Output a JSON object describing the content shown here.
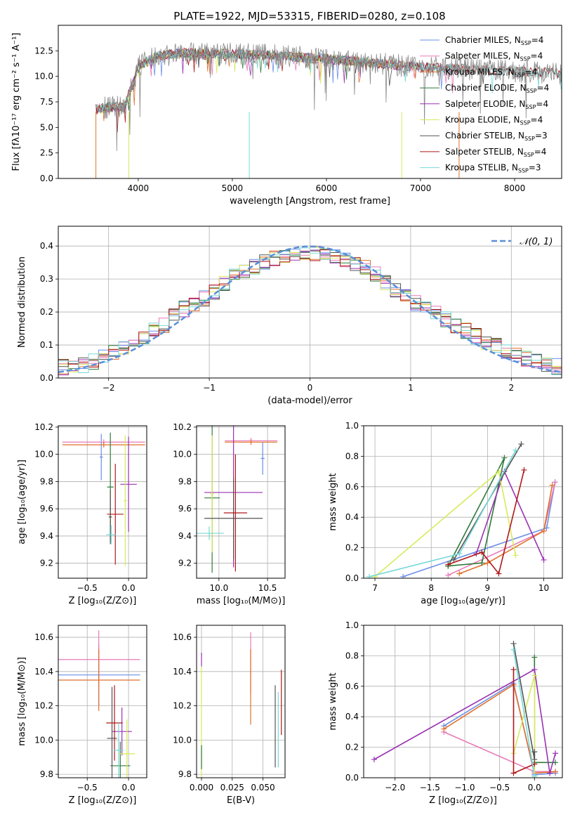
{
  "figure_title": "PLATE=1922, MJD=53315, FIBERID=0280, z=0.108",
  "colors": {
    "Chabrier MILES": "#6a8ee8",
    "Salpeter MILES": "#e87ab8",
    "Kroupa MILES": "#e0702a",
    "Chabrier ELODIE": "#2f7a3a",
    "Salpeter ELODIE": "#9a32b4",
    "Kroupa ELODIE": "#d8ea5a",
    "Chabrier STELIB": "#555555",
    "Salpeter STELIB": "#b01818",
    "Kroupa STELIB": "#78d8d8",
    "data": "#888888",
    "normal": "#5b8ed8"
  },
  "chart_data": [
    {
      "id": "spectrum",
      "type": "line",
      "title": "PLATE=1922, MJD=53315, FIBERID=0280, z=0.108",
      "xlabel": "wavelength [Angstrom, rest frame]",
      "ylabel": "Flux [fλ10⁻¹⁷ erg cm⁻² s⁻¹ A⁻¹]",
      "xlim": [
        3150,
        8500
      ],
      "ylim": [
        0,
        15
      ],
      "xticks": [
        "4000",
        "5000",
        "6000",
        "7000",
        "8000"
      ],
      "yticks": [
        "0.0",
        "2.5",
        "5.0",
        "7.5",
        "10.0",
        "12.5"
      ],
      "legend_position": "upper-right",
      "legend": [
        {
          "base": "Chabrier MILES, N",
          "sub": "SSP",
          "tail": "=4"
        },
        {
          "base": "Salpeter MILES, N",
          "sub": "SSP",
          "tail": "=4"
        },
        {
          "base": "Kroupa MILES, N",
          "sub": "SSP",
          "tail": "=4"
        },
        {
          "base": "Chabrier ELODIE, N",
          "sub": "SSP",
          "tail": "=4"
        },
        {
          "base": "Salpeter ELODIE, N",
          "sub": "SSP",
          "tail": "=4"
        },
        {
          "base": "Kroupa ELODIE, N",
          "sub": "SSP",
          "tail": "=4"
        },
        {
          "base": "Chabrier STELIB, N",
          "sub": "SSP",
          "tail": "=3"
        },
        {
          "base": "Salpeter STELIB, N",
          "sub": "SSP",
          "tail": "=4"
        },
        {
          "base": "Kroupa STELIB, N",
          "sub": "SSP",
          "tail": "=3"
        }
      ],
      "model_ranges": [
        {
          "name": "Chabrier MILES",
          "x": [
            3550,
            7410
          ]
        },
        {
          "name": "Salpeter MILES",
          "x": [
            3550,
            7410
          ]
        },
        {
          "name": "Kroupa MILES",
          "x": [
            3550,
            7410
          ]
        },
        {
          "name": "Chabrier ELODIE",
          "x": [
            3550,
            6800
          ]
        },
        {
          "name": "Salpeter ELODIE",
          "x": [
            3550,
            6800
          ]
        },
        {
          "name": "Kroupa ELODIE",
          "x": [
            3550,
            6800
          ]
        },
        {
          "name": "Chabrier STELIB",
          "x": [
            3550,
            8500
          ]
        },
        {
          "name": "Salpeter STELIB",
          "x": [
            3550,
            8500
          ]
        },
        {
          "name": "Kroupa STELIB",
          "x": [
            3550,
            8500
          ]
        }
      ],
      "continuum": [
        [
          3200,
          6.5
        ],
        [
          3500,
          6.7
        ],
        [
          3700,
          7.0
        ],
        [
          3850,
          7.0
        ],
        [
          3950,
          9.5
        ],
        [
          4000,
          11.0
        ],
        [
          4200,
          12.0
        ],
        [
          4500,
          12.3
        ],
        [
          5000,
          12.2
        ],
        [
          5500,
          12.0
        ],
        [
          6000,
          11.7
        ],
        [
          6500,
          11.3
        ],
        [
          7000,
          10.9
        ],
        [
          7500,
          10.7
        ],
        [
          8000,
          10.5
        ],
        [
          8500,
          10.3
        ]
      ]
    },
    {
      "id": "residuals",
      "type": "step",
      "xlabel": "(data-model)/error",
      "ylabel": "Normed distribution",
      "xlim": [
        -2.5,
        2.5
      ],
      "ylim": [
        0,
        0.46
      ],
      "xticks": [
        "−2",
        "−1",
        "0",
        "1",
        "2"
      ],
      "yticks": [
        "0.0",
        "0.1",
        "0.2",
        "0.3",
        "0.4"
      ],
      "grid": true,
      "bin_width": 0.1,
      "legend_label": "𝒩(0, 1)",
      "legend_position": "upper-right",
      "outline": [
        [
          -2.5,
          0.03
        ],
        [
          -2.25,
          0.04
        ],
        [
          -2.0,
          0.065
        ],
        [
          -1.75,
          0.11
        ],
        [
          -1.5,
          0.15
        ],
        [
          -1.25,
          0.21
        ],
        [
          -1.0,
          0.25
        ],
        [
          -0.75,
          0.31
        ],
        [
          -0.5,
          0.345
        ],
        [
          -0.25,
          0.375
        ],
        [
          0.0,
          0.38
        ],
        [
          0.25,
          0.37
        ],
        [
          0.5,
          0.345
        ],
        [
          0.75,
          0.29
        ],
        [
          1.0,
          0.235
        ],
        [
          1.25,
          0.2
        ],
        [
          1.5,
          0.15
        ],
        [
          1.75,
          0.11
        ],
        [
          2.0,
          0.075
        ],
        [
          2.25,
          0.05
        ],
        [
          2.5,
          0.03
        ]
      ]
    },
    {
      "id": "age-vs-Z",
      "type": "errorbar",
      "xlabel": "Z [log₁₀(Z/Z⊙)]",
      "ylabel": "age  [log₁₀(age/yr)]",
      "xlim": [
        -0.85,
        0.22
      ],
      "ylim": [
        9.09,
        10.21
      ],
      "xticks": [
        "−0.5",
        "0.0"
      ],
      "yticks": [
        "9.2",
        "9.4",
        "9.6",
        "9.8",
        "10.0",
        "10.2"
      ],
      "grid": true,
      "points": [
        {
          "name": "Chabrier MILES",
          "x": -0.33,
          "xerr": 0.02,
          "y": 9.98,
          "yerr": 0.17
        },
        {
          "name": "Salpeter MILES",
          "x": -0.3,
          "xerr": 0.5,
          "y": 10.09,
          "yerr": 0.02
        },
        {
          "name": "Kroupa MILES",
          "x": -0.3,
          "xerr": 0.5,
          "y": 10.07,
          "yerr": 0.02
        },
        {
          "name": "Chabrier ELODIE",
          "x": -0.22,
          "xerr": 0.04,
          "y": 9.76,
          "yerr": 0.4
        },
        {
          "name": "Salpeter ELODIE",
          "x": 0.0,
          "xerr": 0.1,
          "y": 9.78,
          "yerr": 0.35
        },
        {
          "name": "Kroupa ELODIE",
          "x": -0.04,
          "xerr": 0.02,
          "y": 9.66,
          "yerr": 0.48
        },
        {
          "name": "Chabrier STELIB",
          "x": -0.22,
          "xerr": 0.02,
          "y": 9.54,
          "yerr": 0.2
        },
        {
          "name": "Salpeter STELIB",
          "x": -0.16,
          "xerr": 0.1,
          "y": 9.56,
          "yerr": 0.37
        },
        {
          "name": "Kroupa STELIB",
          "x": -0.21,
          "xerr": 0.06,
          "y": 9.41,
          "yerr": 0.07
        }
      ]
    },
    {
      "id": "age-vs-mass",
      "type": "errorbar",
      "xlabel": "mass [log₁₀(M/M⊙)]",
      "xlim": [
        9.77,
        10.68
      ],
      "ylim": [
        9.09,
        10.21
      ],
      "xticks": [
        "10.0",
        "10.5"
      ],
      "yticks": [
        "9.2",
        "9.4",
        "9.6",
        "9.8",
        "10.0",
        "10.2"
      ],
      "grid": true,
      "points": [
        {
          "name": "Chabrier MILES",
          "x": 10.45,
          "xerr": 0.02,
          "y": 9.97,
          "yerr": 0.12
        },
        {
          "name": "Salpeter MILES",
          "x": 10.33,
          "xerr": 0.27,
          "y": 10.1,
          "yerr": 0.02
        },
        {
          "name": "Kroupa MILES",
          "x": 10.33,
          "xerr": 0.27,
          "y": 10.09,
          "yerr": 0.02
        },
        {
          "name": "Chabrier ELODIE",
          "x": 9.93,
          "xerr": 0.08,
          "y": 9.68,
          "yerr": 0.55
        },
        {
          "name": "Salpeter ELODIE",
          "x": 10.15,
          "xerr": 0.3,
          "y": 9.72,
          "yerr": 0.55
        },
        {
          "name": "Kroupa ELODIE",
          "x": 9.93,
          "xerr": 0.02,
          "y": 9.71,
          "yerr": 0.43
        },
        {
          "name": "Chabrier STELIB",
          "x": 10.15,
          "xerr": 0.3,
          "y": 9.53,
          "yerr": 0.3
        },
        {
          "name": "Salpeter STELIB",
          "x": 10.17,
          "xerr": 0.12,
          "y": 9.57,
          "yerr": 0.43
        },
        {
          "name": "Kroupa STELIB",
          "x": 9.9,
          "xerr": 0.15,
          "y": 9.42,
          "yerr": 0.05
        }
      ]
    },
    {
      "id": "weight-vs-age",
      "type": "line",
      "xlabel": "age  [log₁₀(age/yr)]",
      "ylabel": "mass weight",
      "xlim": [
        6.8,
        10.33
      ],
      "ylim": [
        0,
        1.0
      ],
      "xticks": [
        "7",
        "8",
        "9",
        "10"
      ],
      "yticks": [
        "0.0",
        "0.2",
        "0.4",
        "0.6",
        "0.8",
        "1.0"
      ],
      "grid": true,
      "series": [
        {
          "name": "Chabrier MILES",
          "x": [
            7.5,
            10.05,
            10.2
          ],
          "y": [
            0.01,
            0.33,
            0.63
          ]
        },
        {
          "name": "Salpeter MILES",
          "x": [
            8.3,
            10.0,
            10.2
          ],
          "y": [
            0.02,
            0.31,
            0.63
          ]
        },
        {
          "name": "Kroupa MILES",
          "x": [
            8.5,
            9.0,
            10.0,
            10.15
          ],
          "y": [
            0.03,
            0.1,
            0.31,
            0.61
          ]
        },
        {
          "name": "Chabrier ELODIE",
          "x": [
            8.3,
            9.3,
            8.9,
            8.3
          ],
          "y": [
            0.08,
            0.79,
            0.1,
            0.08
          ]
        },
        {
          "name": "Salpeter ELODIE",
          "x": [
            8.8,
            9.3,
            10.0
          ],
          "y": [
            0.16,
            0.7,
            0.12
          ]
        },
        {
          "name": "Kroupa ELODIE",
          "x": [
            7.0,
            9.2,
            9.5
          ],
          "y": [
            0.01,
            0.7,
            0.15
          ]
        },
        {
          "name": "Chabrier STELIB",
          "x": [
            8.4,
            9.6
          ],
          "y": [
            0.12,
            0.88
          ]
        },
        {
          "name": "Salpeter STELIB",
          "x": [
            8.3,
            8.9,
            9.2,
            9.65
          ],
          "y": [
            0.09,
            0.17,
            0.03,
            0.71
          ]
        },
        {
          "name": "Kroupa STELIB",
          "x": [
            6.9,
            8.5,
            9.5
          ],
          "y": [
            0.01,
            0.16,
            0.84
          ]
        }
      ]
    },
    {
      "id": "mass-vs-Z",
      "type": "errorbar",
      "xlabel": "Z [log₁₀(Z/Z⊙)]",
      "ylabel": "mass [log₁₀(M/M⊙)]",
      "xlim": [
        -0.85,
        0.22
      ],
      "ylim": [
        9.78,
        10.67
      ],
      "xticks": [
        "−0.5",
        "0.0"
      ],
      "yticks": [
        "9.8",
        "10.0",
        "10.2",
        "10.4",
        "10.6"
      ],
      "grid": true,
      "points": [
        {
          "name": "Chabrier MILES",
          "x": -0.36,
          "xerr": 0.5,
          "y": 10.38,
          "yerr": 0.18
        },
        {
          "name": "Salpeter MILES",
          "x": -0.36,
          "xerr": 0.5,
          "y": 10.47,
          "yerr": 0.17
        },
        {
          "name": "Kroupa MILES",
          "x": -0.36,
          "xerr": 0.5,
          "y": 10.35,
          "yerr": 0.18
        },
        {
          "name": "Chabrier ELODIE",
          "x": -0.1,
          "xerr": 0.12,
          "y": 9.85,
          "yerr": 0.14
        },
        {
          "name": "Salpeter ELODIE",
          "x": -0.08,
          "xerr": 0.12,
          "y": 10.05,
          "yerr": 0.14
        },
        {
          "name": "Kroupa ELODIE",
          "x": -0.02,
          "xerr": 0.1,
          "y": 9.92,
          "yerr": 0.2
        },
        {
          "name": "Chabrier STELIB",
          "x": -0.2,
          "xerr": 0.06,
          "y": 10.01,
          "yerr": 0.3
        },
        {
          "name": "Salpeter STELIB",
          "x": -0.17,
          "xerr": 0.1,
          "y": 10.1,
          "yerr": 0.22
        },
        {
          "name": "Kroupa STELIB",
          "x": -0.12,
          "xerr": 0.06,
          "y": 9.94,
          "yerr": 0.16
        }
      ]
    },
    {
      "id": "mass-vs-EBV",
      "type": "errorbar",
      "xlabel": "E(B-V)",
      "xlim": [
        -0.004,
        0.068
      ],
      "ylim": [
        9.78,
        10.67
      ],
      "xticks": [
        "0.000",
        "0.025",
        "0.050"
      ],
      "yticks": [
        "9.8",
        "10.0",
        "10.2",
        "10.4",
        "10.6"
      ],
      "grid": true,
      "points": [
        {
          "name": "Salpeter ELODIE",
          "x": 0.0,
          "xerr": 0,
          "y": 10.47,
          "yerr": 0.04
        },
        {
          "name": "Kroupa ELODIE",
          "x": 0.0,
          "xerr": 0,
          "y": 10.1,
          "yerr": 0.33
        },
        {
          "name": "Chabrier ELODIE",
          "x": 0.0,
          "xerr": 0,
          "y": 9.9,
          "yerr": 0.07
        },
        {
          "name": "Salpeter MILES",
          "x": 0.04,
          "xerr": 0,
          "y": 10.45,
          "yerr": 0.18
        },
        {
          "name": "Kroupa MILES",
          "x": 0.04,
          "xerr": 0,
          "y": 10.31,
          "yerr": 0.22
        },
        {
          "name": "Chabrier STELIB",
          "x": 0.06,
          "xerr": 0,
          "y": 10.08,
          "yerr": 0.24
        },
        {
          "name": "Kroupa STELIB",
          "x": 0.0625,
          "xerr": 0,
          "y": 10.06,
          "yerr": 0.22
        },
        {
          "name": "Salpeter STELIB",
          "x": 0.065,
          "xerr": 0,
          "y": 10.22,
          "yerr": 0.19
        }
      ]
    },
    {
      "id": "weight-vs-Z",
      "type": "line",
      "xlabel": "Z [log₁₀(Z/Z⊙)]",
      "ylabel": "mass weight",
      "xlim": [
        -2.45,
        0.4
      ],
      "ylim": [
        0,
        1.0
      ],
      "xticks": [
        "−2.0",
        "−1.5",
        "−1.0",
        "−0.5",
        "0.0"
      ],
      "yticks": [
        "0.0",
        "0.2",
        "0.4",
        "0.6",
        "0.8",
        "1.0"
      ],
      "grid": true,
      "series": [
        {
          "name": "Chabrier MILES",
          "x": [
            -1.3,
            -0.3,
            0.0,
            0.3
          ],
          "y": [
            0.34,
            0.62,
            0.02,
            0.03
          ]
        },
        {
          "name": "Salpeter MILES",
          "x": [
            -1.3,
            0.0,
            0.3
          ],
          "y": [
            0.3,
            0.04,
            0.04
          ]
        },
        {
          "name": "Kroupa MILES",
          "x": [
            -1.3,
            -0.3,
            0.0,
            0.3
          ],
          "y": [
            0.32,
            0.61,
            0.03,
            0.04
          ]
        },
        {
          "name": "Chabrier ELODIE",
          "x": [
            0.0,
            0.0,
            0.3
          ],
          "y": [
            0.79,
            0.1,
            0.1
          ]
        },
        {
          "name": "Salpeter ELODIE",
          "x": [
            -2.3,
            0.0,
            0.22,
            0.3
          ],
          "y": [
            0.12,
            0.71,
            0.03,
            0.16
          ]
        },
        {
          "name": "Kroupa ELODIE",
          "x": [
            -0.3,
            0.0,
            0.0
          ],
          "y": [
            0.16,
            0.67,
            0.01
          ]
        },
        {
          "name": "Chabrier STELIB",
          "x": [
            -0.3,
            0.0,
            0.0
          ],
          "y": [
            0.88,
            0.12,
            0.17
          ]
        },
        {
          "name": "Salpeter STELIB",
          "x": [
            -0.3,
            -0.3,
            0.0
          ],
          "y": [
            0.71,
            0.03,
            0.09
          ]
        },
        {
          "name": "Kroupa STELIB",
          "x": [
            -0.3,
            0.0
          ],
          "y": [
            0.84,
            0.01
          ]
        }
      ]
    }
  ]
}
